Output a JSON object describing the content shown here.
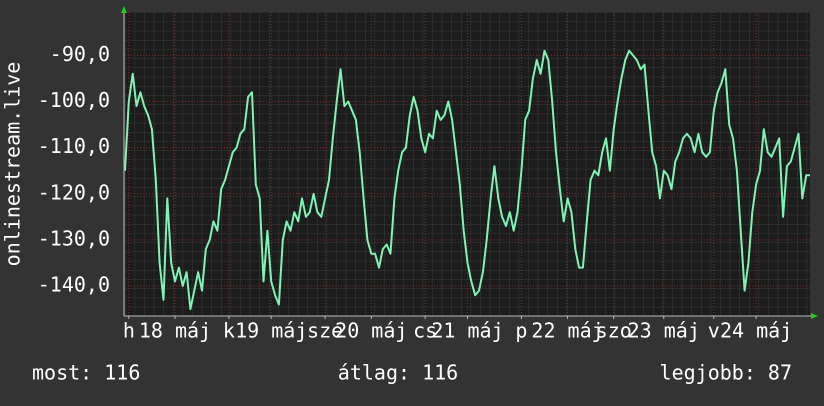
{
  "chart_data": {
    "type": "line",
    "y_label": "onlinestream.live",
    "categories": [
      null,
      "h",
      null,
      null,
      null,
      null,
      null,
      null,
      null,
      null,
      null,
      null,
      null,
      "18 máj",
      null,
      null,
      null,
      null,
      null,
      null,
      null,
      null,
      null,
      null,
      null,
      null,
      null,
      "k",
      null,
      null,
      null,
      null,
      null,
      null,
      null,
      null,
      null,
      null,
      "19 máj",
      null,
      null,
      null,
      null,
      null,
      null,
      null,
      null,
      null,
      null,
      null,
      null,
      null,
      "sze",
      null,
      null,
      null,
      null,
      null,
      null,
      null,
      null,
      null,
      null,
      null,
      "20 máj",
      null,
      null,
      null,
      null,
      null,
      null,
      null,
      null,
      null,
      null,
      null,
      null,
      null,
      "cs",
      null,
      null,
      null,
      null,
      null,
      null,
      null,
      null,
      null,
      null,
      "21 máj",
      null,
      null,
      null,
      null,
      null,
      null,
      null,
      null,
      null,
      null,
      null,
      null,
      null,
      "p",
      null,
      null,
      null,
      null,
      null,
      null,
      null,
      null,
      null,
      null,
      null,
      "22 máj",
      null,
      null,
      null,
      null,
      null,
      null,
      null,
      null,
      null,
      null,
      null,
      "szo",
      null,
      null,
      null,
      null,
      null,
      null,
      null,
      null,
      null,
      null,
      null,
      null,
      "23 máj",
      null,
      null,
      null,
      null,
      null,
      null,
      null,
      null,
      null,
      null,
      null,
      null,
      "v",
      null,
      null,
      null,
      null,
      null,
      null,
      null,
      null,
      null,
      null,
      "24 máj",
      null,
      null,
      null,
      null,
      null,
      null,
      null,
      null,
      null,
      null,
      null,
      null,
      null,
      null
    ],
    "series": [
      {
        "name": "onlinestream.live",
        "color": "#7ff2b4",
        "values": [
          -115,
          -100,
          -94,
          -101,
          -98,
          -101,
          -103,
          -106,
          -117,
          -135,
          -143,
          -121,
          -135,
          -139,
          -136,
          -140,
          -137,
          -145,
          -141,
          -137,
          -141,
          -132,
          -130,
          -126,
          -128,
          -119,
          -117,
          -114,
          -111,
          -110,
          -107,
          -106,
          -99,
          -98,
          -118,
          -121,
          -139,
          -128,
          -139,
          -142,
          -144,
          -130,
          -126,
          -128,
          -124,
          -126,
          -121,
          -125,
          -124,
          -120,
          -124,
          -125,
          -121,
          -117,
          -108,
          -100,
          -93,
          -101,
          -100,
          -102,
          -104,
          -111,
          -121,
          -130,
          -133,
          -133,
          -136,
          -132,
          -131,
          -133,
          -121,
          -115,
          -111,
          -110,
          -103,
          -99,
          -102,
          -108,
          -111,
          -107,
          -108,
          -102,
          -104,
          -103,
          -100,
          -104,
          -111,
          -118,
          -128,
          -135,
          -139,
          -142,
          -141,
          -137,
          -130,
          -121,
          -114,
          -121,
          -125,
          -127,
          -124,
          -128,
          -124,
          -115,
          -104,
          -102,
          -95,
          -91,
          -94,
          -89,
          -91,
          -100,
          -111,
          -119,
          -126,
          -121,
          -124,
          -132,
          -136,
          -136,
          -126,
          -117,
          -115,
          -116,
          -111,
          -108,
          -115,
          -106,
          -100,
          -95,
          -91,
          -89,
          -90,
          -91,
          -93,
          -92,
          -102,
          -111,
          -114,
          -121,
          -115,
          -116,
          -119,
          -113,
          -111,
          -108,
          -107,
          -108,
          -111,
          -107,
          -111,
          -112,
          -111,
          -102,
          -98,
          -96,
          -93,
          -105,
          -108,
          -115,
          -128,
          -141,
          -135,
          -124,
          -118,
          -115,
          -106,
          -111,
          -112,
          -110,
          -108,
          -125,
          -114,
          -113,
          -110,
          -107,
          -121,
          -116,
          -116
        ]
      }
    ],
    "ylim": [
      -146.5,
      -80.6
    ],
    "yticks": [
      {
        "value": -90,
        "label": "-90,0"
      },
      {
        "value": -100,
        "label": "-100,0"
      },
      {
        "value": -110,
        "label": "-110,0"
      },
      {
        "value": -120,
        "label": "-120,0"
      },
      {
        "value": -130,
        "label": "-130,0"
      },
      {
        "value": -140,
        "label": "-140,0"
      }
    ],
    "grid": true,
    "stats": [
      "most: 116",
      "átlag: 116",
      "legjobb: 87"
    ]
  }
}
